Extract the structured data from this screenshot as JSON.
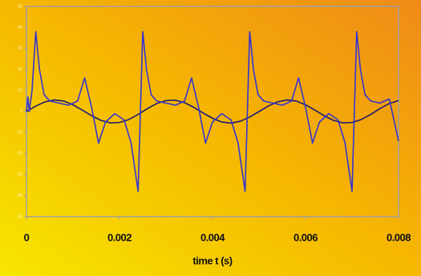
{
  "chart_data": {
    "type": "line",
    "x_label": "time t (s)",
    "xlim": [
      0,
      0.008
    ],
    "xticks": [
      0,
      0.002,
      0.004,
      0.006,
      0.008
    ],
    "ylim": [
      -50,
      50
    ],
    "yticks": [
      -50,
      -40,
      -30,
      -20,
      -10,
      0,
      10,
      20,
      30,
      40,
      50
    ],
    "series": [
      {
        "color": "#1c1c6e",
        "x": [
          0,
          0.0002,
          0.0004,
          0.0006,
          0.0008,
          0.001,
          0.0012,
          0.0014,
          0.0016,
          0.0018,
          0.002,
          0.0022,
          0.0024,
          0.0026,
          0.0028,
          0.003,
          0.0032,
          0.0034,
          0.0036,
          0.0038,
          0.004,
          0.0042,
          0.0044,
          0.0046,
          0.0048,
          0.005,
          0.0052,
          0.0054,
          0.0056,
          0.0058,
          0.006,
          0.0062,
          0.0064,
          0.0066,
          0.0068,
          0.007,
          0.0072,
          0.0074,
          0.0076,
          0.0078,
          0.008
        ],
        "values": [
          0,
          2.6,
          4.6,
          5.5,
          5.0,
          3.2,
          0.7,
          -2.0,
          -4.2,
          -5.4,
          -5.2,
          -3.8,
          -1.4,
          1.4,
          3.8,
          5.2,
          5.4,
          4.2,
          2.0,
          -0.7,
          -3.2,
          -5.0,
          -5.5,
          -4.6,
          -2.6,
          0,
          2.6,
          4.6,
          5.5,
          5.0,
          3.2,
          0.7,
          -2.0,
          -4.2,
          -5.4,
          -5.2,
          -3.8,
          -1.4,
          1.4,
          3.8,
          5.2
        ]
      },
      {
        "color": "#3535d0",
        "x": [
          0,
          3e-05,
          6e-05,
          0.00012,
          0.0002,
          0.00028,
          0.00038,
          0.0005,
          0.0007,
          0.0009,
          0.0011,
          0.00125,
          0.0014,
          0.00155,
          0.0017,
          0.0019,
          0.0021,
          0.00225,
          0.0024,
          0.0025,
          0.00258,
          0.00268,
          0.0028,
          0.003,
          0.0032,
          0.0034,
          0.00355,
          0.0037,
          0.00385,
          0.004,
          0.0042,
          0.0044,
          0.00455,
          0.0047,
          0.0048,
          0.00488,
          0.00498,
          0.0051,
          0.0053,
          0.0055,
          0.0057,
          0.00585,
          0.006,
          0.00615,
          0.0063,
          0.0065,
          0.0067,
          0.00685,
          0.007,
          0.0071,
          0.00718,
          0.00728,
          0.0074,
          0.0076,
          0.0078,
          0.008
        ],
        "values": [
          0,
          7,
          0,
          10,
          38,
          20,
          8,
          5,
          4,
          3,
          5,
          16,
          2,
          -15,
          -5,
          -1,
          -4,
          -15,
          -38,
          38,
          20,
          8,
          5,
          4,
          3,
          5,
          16,
          2,
          -15,
          -5,
          -1,
          -4,
          -15,
          -38,
          38,
          20,
          8,
          5,
          4,
          3,
          5,
          16,
          2,
          -15,
          -5,
          -1,
          -4,
          -15,
          -38,
          38,
          20,
          8,
          5,
          4,
          6,
          -14
        ]
      }
    ]
  }
}
